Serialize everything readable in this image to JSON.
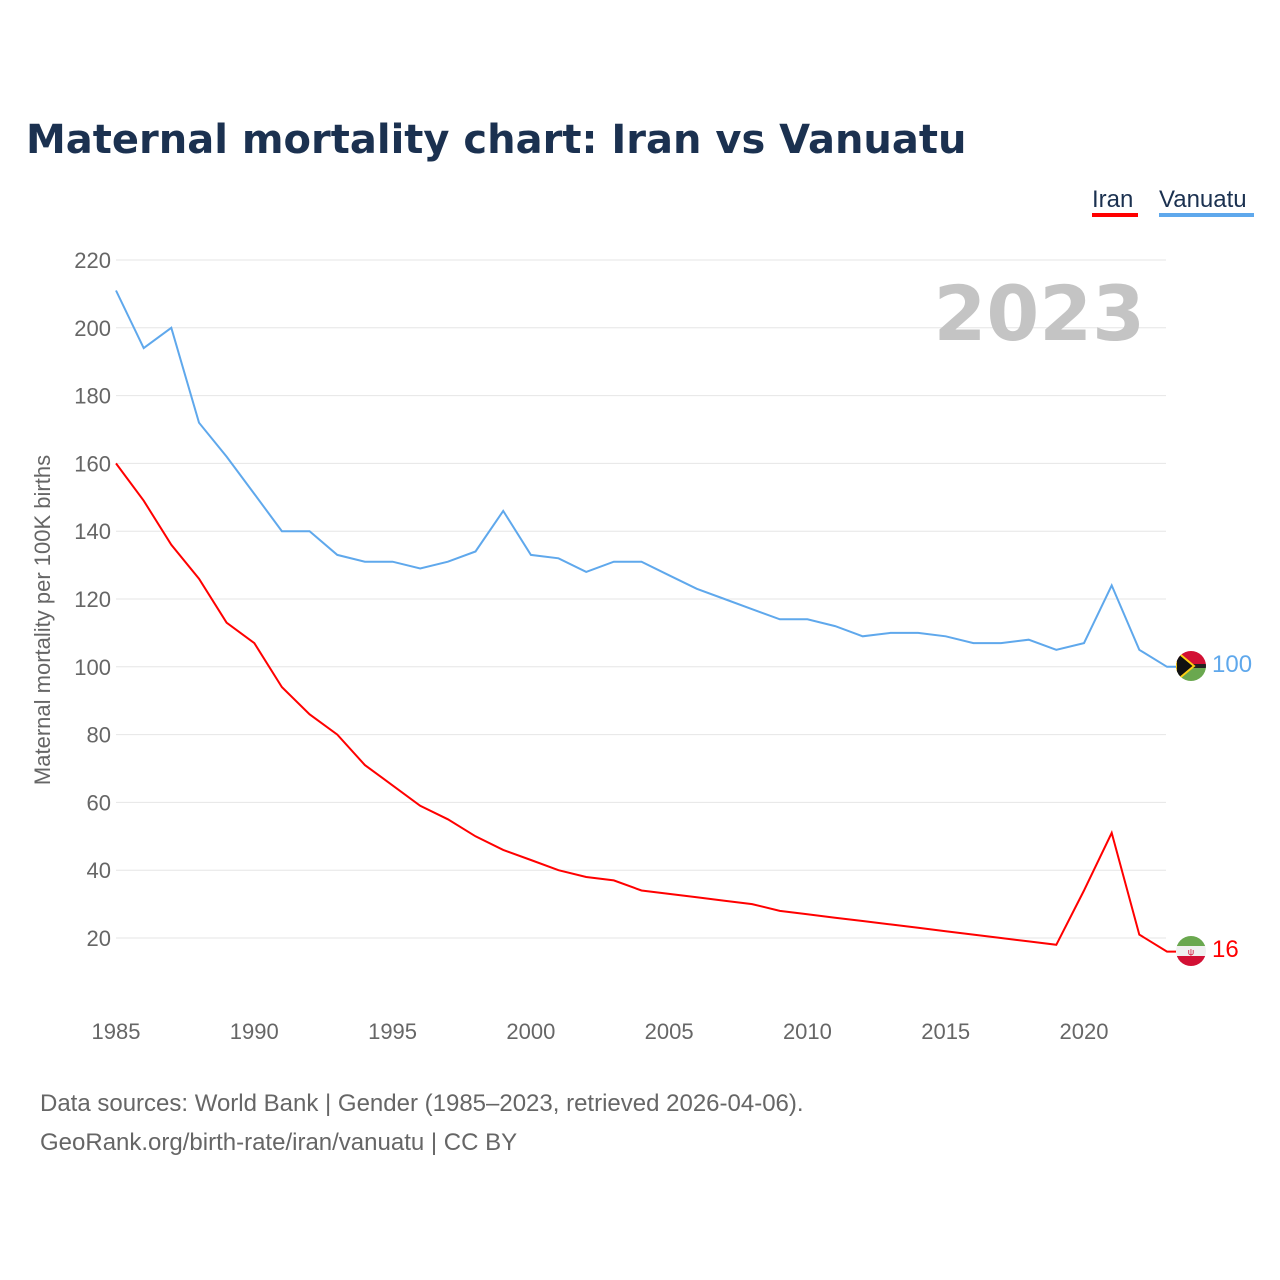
{
  "chart_data": {
    "type": "line",
    "title": "Maternal mortality chart: Iran vs Vanuatu",
    "ylabel": "Maternal mortality per 100K births",
    "xlabel": "",
    "ylim": [
      0,
      220
    ],
    "xlim": [
      1985,
      2023
    ],
    "grid": true,
    "legend_position": "top-right",
    "year_watermark": "2023",
    "yticks": [
      "20",
      "40",
      "60",
      "80",
      "100",
      "120",
      "140",
      "160",
      "180",
      "200",
      "220"
    ],
    "xticks": [
      "1985",
      "1990",
      "1995",
      "2000",
      "2005",
      "2010",
      "2015",
      "2020"
    ],
    "x": [
      1985,
      1986,
      1987,
      1988,
      1989,
      1990,
      1991,
      1992,
      1993,
      1994,
      1995,
      1996,
      1997,
      1998,
      1999,
      2000,
      2001,
      2002,
      2003,
      2004,
      2005,
      2006,
      2007,
      2008,
      2009,
      2010,
      2011,
      2012,
      2013,
      2014,
      2015,
      2016,
      2017,
      2018,
      2019,
      2020,
      2021,
      2022,
      2023
    ],
    "series": [
      {
        "name": "Iran",
        "color": "#ff0000",
        "end_label": "16",
        "flag": "iran-flag",
        "values": [
          160,
          149,
          136,
          126,
          113,
          107,
          94,
          86,
          80,
          71,
          65,
          59,
          55,
          50,
          46,
          43,
          40,
          38,
          37,
          34,
          33,
          32,
          31,
          30,
          28,
          27,
          26,
          25,
          24,
          23,
          22,
          21,
          20,
          19,
          18,
          34,
          51,
          21,
          16
        ]
      },
      {
        "name": "Vanuatu",
        "color": "#5fa8ec",
        "end_label": "100",
        "flag": "vanuatu-flag",
        "values": [
          211,
          194,
          200,
          172,
          162,
          151,
          140,
          140,
          133,
          131,
          131,
          129,
          131,
          134,
          146,
          133,
          132,
          128,
          131,
          131,
          127,
          123,
          120,
          117,
          114,
          114,
          112,
          109,
          110,
          110,
          109,
          107,
          107,
          108,
          105,
          107,
          124,
          105,
          100
        ]
      }
    ]
  },
  "footer": {
    "line1": "Data sources: World Bank | Gender (1985–2023, retrieved 2026-04-06).",
    "line2": "GeoRank.org/birth-rate/iran/vanuatu | CC BY"
  }
}
